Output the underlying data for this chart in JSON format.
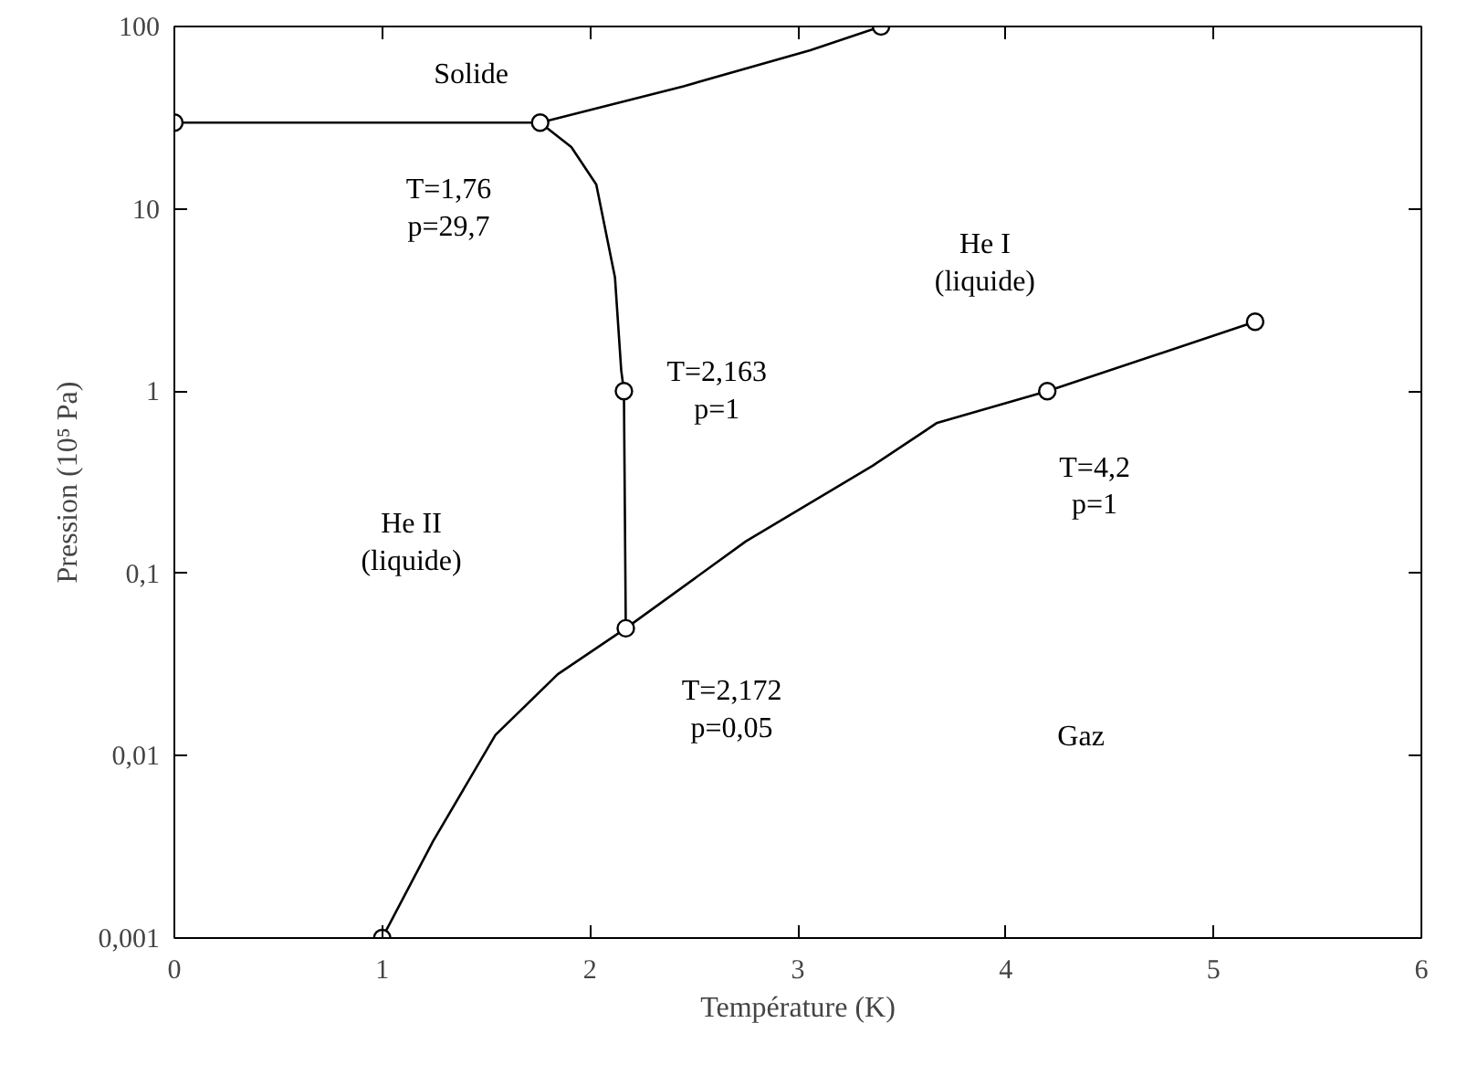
{
  "chart_data": {
    "type": "line",
    "xlabel": "Température (K)",
    "ylabel": "Pression (10⁵ Pa)",
    "log": "y",
    "grid": false,
    "line_style": "solid",
    "marker": "none",
    "xlim": [
      0,
      6
    ],
    "xticks": [
      0,
      1,
      2,
      3,
      4,
      5,
      6
    ],
    "ylim": [
      0.001,
      100
    ],
    "yticks": [
      {
        "value": 0.001,
        "label": "0,001"
      },
      {
        "value": 0.01,
        "label": "0,01"
      },
      {
        "value": 0.1,
        "label": "0,1"
      },
      1,
      10,
      100
    ],
    "series": [
      {
        "color": "#000000",
        "x": [
          0,
          1.76
        ],
        "values": [
          29.7,
          29.7
        ]
      },
      {
        "color": "#000000",
        "x": [
          1.76,
          2.45,
          3.06,
          3.4
        ],
        "values": [
          29.7,
          47,
          74,
          100
        ]
      },
      {
        "color": "#000000",
        "x": [
          1.76,
          1.91,
          2.03,
          2.12,
          2.15,
          2.163,
          2.172
        ],
        "values": [
          29.7,
          21.8,
          13.6,
          4.2,
          1.3,
          1,
          0.05
        ]
      },
      {
        "color": "#000000",
        "x": [
          1,
          1.245,
          1.545,
          1.845,
          2.172,
          2.75,
          3.36,
          3.67,
          4.2,
          5.2
        ],
        "values": [
          0.001,
          0.0034,
          0.013,
          0.028,
          0.05,
          0.15,
          0.39,
          0.67,
          1,
          2.4
        ]
      },
      {
        "type": "scatter",
        "marker": "circle",
        "color": "#000000",
        "x": [
          0,
          1.76,
          3.4,
          2.163,
          2.172,
          1,
          4.2,
          5.2
        ],
        "values": [
          29.7,
          29.7,
          100,
          1,
          0.05,
          0.001,
          1,
          2.4
        ]
      }
    ],
    "annotations": [
      "Solide",
      "T=1,76\np=29,7",
      "He I\n(liquide)",
      "T=2,163\np=1",
      "He II\n(liquide)",
      "T=4,2\np=1",
      "T=2,172\np=0,05",
      "Gaz"
    ]
  }
}
